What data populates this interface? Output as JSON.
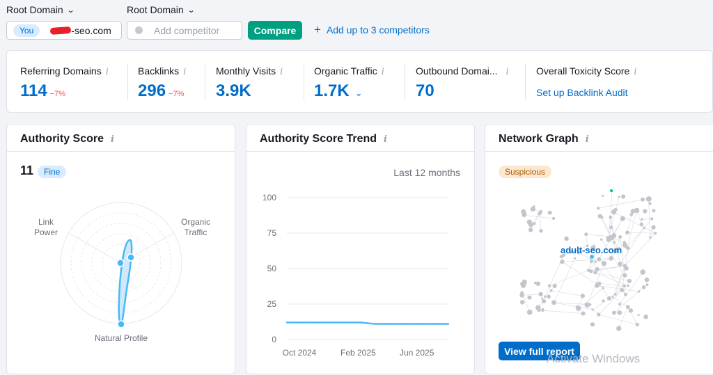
{
  "toolbar": {
    "root_domain_1": "Root Domain",
    "root_domain_2": "Root Domain",
    "you_badge": "You",
    "domain": "-seo.com",
    "competitor_placeholder": "Add competitor",
    "compare_label": "Compare",
    "add_competitors_label": "Add up to 3 competitors"
  },
  "metrics": [
    {
      "label": "Referring Domains",
      "value": "114",
      "delta": "−7%"
    },
    {
      "label": "Backlinks",
      "value": "296",
      "delta": "−7%"
    },
    {
      "label": "Monthly Visits",
      "value": "3.9K"
    },
    {
      "label": "Organic Traffic",
      "value": "1.7K",
      "chevron": "chevron-down-icon"
    },
    {
      "label": "Outbound Domai...",
      "value": "70"
    },
    {
      "label": "Overall Toxicity Score",
      "link": "Set up Backlink Audit"
    }
  ],
  "authority_score": {
    "title": "Authority Score",
    "value": "11",
    "status": "Fine",
    "labels": {
      "link_power_1": "Link",
      "link_power_2": "Power",
      "organic_traffic_1": "Organic",
      "organic_traffic_2": "Traffic",
      "natural_profile": "Natural Profile"
    }
  },
  "trend": {
    "title": "Authority Score Trend",
    "period": "Last 12 months"
  },
  "network": {
    "title": "Network Graph",
    "status": "Suspicious",
    "node_label": "adult-seo.com",
    "button_label": "View full report"
  },
  "watermark": "Activate Windows",
  "colors": {
    "accent": "#006dca",
    "compare": "#009f81",
    "delta": "#ff4953",
    "line": "#48b8f8",
    "suspicious_bg": "#fde7cf",
    "suspicious_text": "#a15c07"
  },
  "chart_data": {
    "type": "line",
    "title": "Authority Score Trend",
    "x_ticks": [
      "Oct 2024",
      "Feb 2025",
      "Jun 2025"
    ],
    "y_ticks": [
      "0",
      "25",
      "50",
      "75",
      "100"
    ],
    "ylim": [
      0,
      100
    ],
    "grid": true,
    "series": [
      {
        "values": [
          12,
          12,
          12,
          12,
          12,
          12,
          11,
          11,
          11,
          11,
          11,
          11
        ]
      }
    ]
  }
}
